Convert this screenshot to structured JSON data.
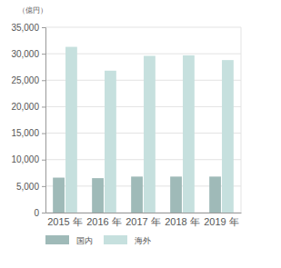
{
  "chart_data": {
    "type": "bar",
    "y_label": "（億円）",
    "categories": [
      "2015 年",
      "2016 年",
      "2017 年",
      "2018 年",
      "2019 年"
    ],
    "series": [
      {
        "name": "国内",
        "color": "#9fbab8",
        "values": [
          6600,
          6500,
          6800,
          6800,
          6800
        ]
      },
      {
        "name": "海外",
        "color": "#c6e0de",
        "values": [
          31300,
          26800,
          29600,
          29700,
          28800
        ]
      }
    ],
    "ylim": [
      0,
      35000
    ],
    "yticks": [
      0,
      {
        "value": 5000,
        "label": "5,000"
      },
      {
        "value": 10000,
        "label": "10,000"
      },
      {
        "value": 15000,
        "label": "15,000"
      },
      {
        "value": 20000,
        "label": "20,000"
      },
      {
        "value": 25000,
        "label": "25,000"
      },
      {
        "value": 30000,
        "label": "30,000"
      },
      {
        "value": 35000,
        "label": "35,000"
      }
    ],
    "grid": true,
    "legend": "bottom"
  }
}
